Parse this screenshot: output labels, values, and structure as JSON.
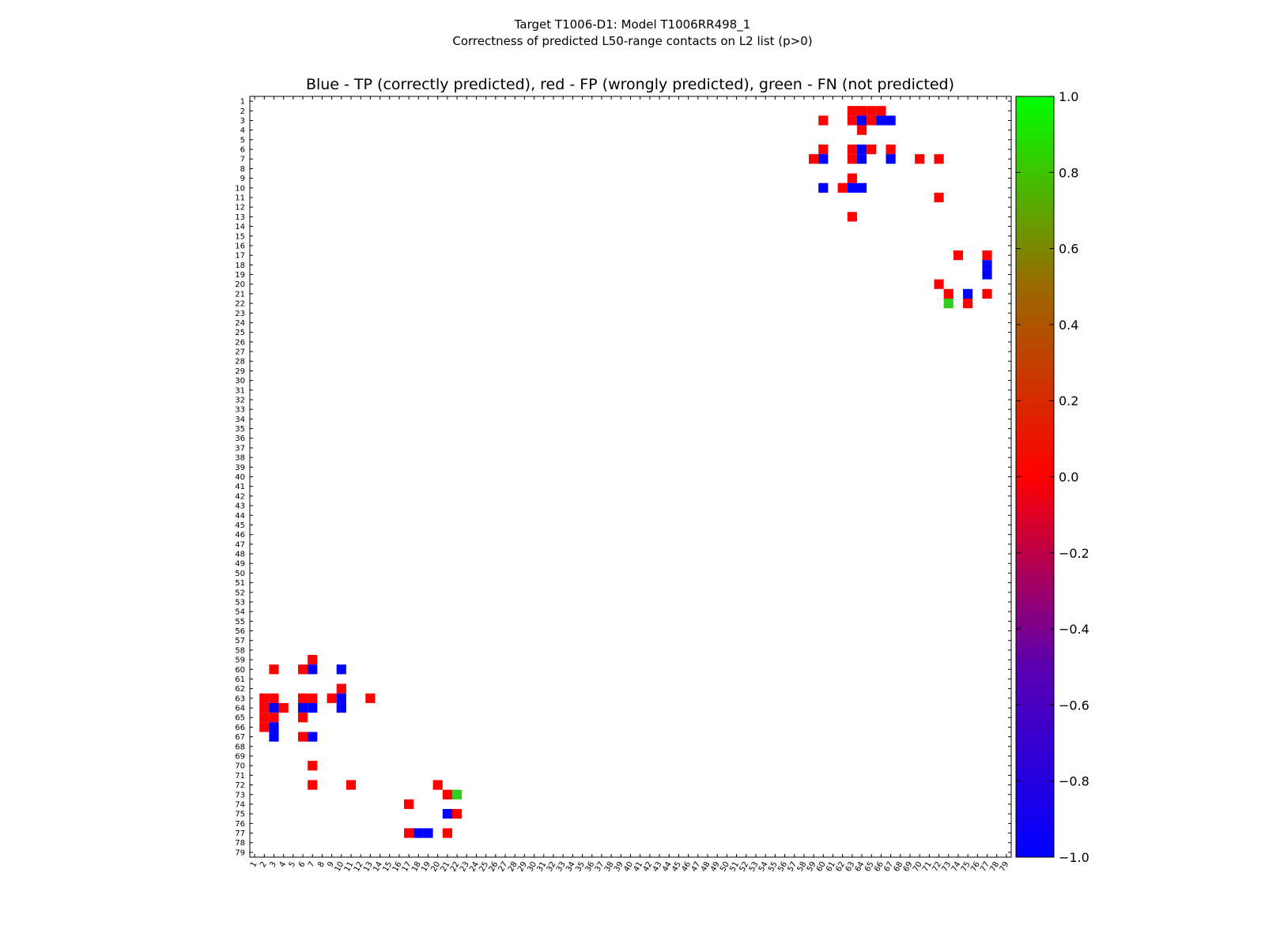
{
  "titles": {
    "line1": "Target T1006-D1: Model T1006RR498_1",
    "line2": "Correctness of predicted L50-range contacts on L2 list (p>0)"
  },
  "chart_data": {
    "type": "heatmap",
    "title": "Blue - TP (correctly predicted), red - FP (wrongly predicted), green - FN (not predicted)",
    "xlabel": "",
    "ylabel": "",
    "x_range": [
      1,
      79
    ],
    "y_range": [
      1,
      79
    ],
    "x_ticks": [
      "1",
      "2",
      "3",
      "4",
      "5",
      "6",
      "7",
      "8",
      "9",
      "10",
      "11",
      "12",
      "13",
      "14",
      "15",
      "16",
      "17",
      "18",
      "19",
      "20",
      "21",
      "22",
      "23",
      "24",
      "25",
      "26",
      "27",
      "28",
      "29",
      "30",
      "31",
      "32",
      "33",
      "34",
      "35",
      "36",
      "37",
      "38",
      "39",
      "40",
      "41",
      "42",
      "43",
      "44",
      "45",
      "46",
      "47",
      "48",
      "49",
      "50",
      "51",
      "52",
      "53",
      "54",
      "55",
      "56",
      "57",
      "58",
      "59",
      "60",
      "61",
      "62",
      "63",
      "64",
      "65",
      "66",
      "67",
      "68",
      "69",
      "70",
      "71",
      "72",
      "73",
      "74",
      "75",
      "76",
      "77",
      "78",
      "79"
    ],
    "y_ticks": [
      "1",
      "2",
      "3",
      "4",
      "5",
      "6",
      "7",
      "8",
      "9",
      "10",
      "11",
      "12",
      "13",
      "14",
      "15",
      "16",
      "17",
      "18",
      "19",
      "20",
      "21",
      "22",
      "23",
      "24",
      "25",
      "26",
      "27",
      "28",
      "29",
      "30",
      "31",
      "32",
      "33",
      "34",
      "35",
      "36",
      "37",
      "38",
      "39",
      "40",
      "41",
      "42",
      "43",
      "44",
      "45",
      "46",
      "47",
      "48",
      "49",
      "50",
      "51",
      "52",
      "53",
      "54",
      "55",
      "56",
      "57",
      "58",
      "59",
      "60",
      "61",
      "62",
      "63",
      "64",
      "65",
      "66",
      "67",
      "68",
      "69",
      "70",
      "71",
      "72",
      "73",
      "74",
      "75",
      "76",
      "77",
      "78",
      "79"
    ],
    "colorbar": {
      "min": -1.0,
      "max": 1.0,
      "ticks": [
        "1.0",
        "0.8",
        "0.6",
        "0.4",
        "0.2",
        "0.0",
        "−0.2",
        "−0.4",
        "−0.6",
        "−0.8",
        "−1.0"
      ],
      "tick_values": [
        1.0,
        0.8,
        0.6,
        0.4,
        0.2,
        0.0,
        -0.2,
        -0.4,
        -0.6,
        -0.8,
        -1.0
      ]
    },
    "colors": {
      "tp": "#0000ff",
      "fp": "#ff0000",
      "fn": "#33cc22"
    },
    "legend": {
      "tp": "TP (correctly predicted)",
      "fp": "FP (wrongly predicted)",
      "fn": "FN (not predicted)"
    },
    "cells": [
      {
        "row": 2,
        "col": 63,
        "kind": "fp"
      },
      {
        "row": 2,
        "col": 64,
        "kind": "fp"
      },
      {
        "row": 2,
        "col": 65,
        "kind": "fp"
      },
      {
        "row": 2,
        "col": 66,
        "kind": "fp"
      },
      {
        "row": 3,
        "col": 60,
        "kind": "fp"
      },
      {
        "row": 3,
        "col": 63,
        "kind": "fp"
      },
      {
        "row": 3,
        "col": 64,
        "kind": "tp"
      },
      {
        "row": 3,
        "col": 65,
        "kind": "fp"
      },
      {
        "row": 3,
        "col": 66,
        "kind": "tp"
      },
      {
        "row": 3,
        "col": 67,
        "kind": "tp"
      },
      {
        "row": 4,
        "col": 64,
        "kind": "fp"
      },
      {
        "row": 6,
        "col": 60,
        "kind": "fp"
      },
      {
        "row": 6,
        "col": 63,
        "kind": "fp"
      },
      {
        "row": 6,
        "col": 64,
        "kind": "tp"
      },
      {
        "row": 6,
        "col": 65,
        "kind": "fp"
      },
      {
        "row": 6,
        "col": 67,
        "kind": "fp"
      },
      {
        "row": 7,
        "col": 59,
        "kind": "fp"
      },
      {
        "row": 7,
        "col": 60,
        "kind": "tp"
      },
      {
        "row": 7,
        "col": 63,
        "kind": "fp"
      },
      {
        "row": 7,
        "col": 64,
        "kind": "tp"
      },
      {
        "row": 7,
        "col": 67,
        "kind": "tp"
      },
      {
        "row": 7,
        "col": 70,
        "kind": "fp"
      },
      {
        "row": 7,
        "col": 72,
        "kind": "fp"
      },
      {
        "row": 9,
        "col": 63,
        "kind": "fp"
      },
      {
        "row": 10,
        "col": 60,
        "kind": "tp"
      },
      {
        "row": 10,
        "col": 62,
        "kind": "fp"
      },
      {
        "row": 10,
        "col": 63,
        "kind": "tp"
      },
      {
        "row": 10,
        "col": 64,
        "kind": "tp"
      },
      {
        "row": 11,
        "col": 72,
        "kind": "fp"
      },
      {
        "row": 13,
        "col": 63,
        "kind": "fp"
      },
      {
        "row": 17,
        "col": 74,
        "kind": "fp"
      },
      {
        "row": 17,
        "col": 77,
        "kind": "fp"
      },
      {
        "row": 18,
        "col": 77,
        "kind": "tp"
      },
      {
        "row": 19,
        "col": 77,
        "kind": "tp"
      },
      {
        "row": 20,
        "col": 72,
        "kind": "fp"
      },
      {
        "row": 21,
        "col": 73,
        "kind": "fp"
      },
      {
        "row": 21,
        "col": 75,
        "kind": "tp"
      },
      {
        "row": 21,
        "col": 77,
        "kind": "fp"
      },
      {
        "row": 22,
        "col": 73,
        "kind": "fn"
      },
      {
        "row": 22,
        "col": 75,
        "kind": "fp"
      },
      {
        "row": 59,
        "col": 7,
        "kind": "fp"
      },
      {
        "row": 60,
        "col": 3,
        "kind": "fp"
      },
      {
        "row": 60,
        "col": 6,
        "kind": "fp"
      },
      {
        "row": 60,
        "col": 7,
        "kind": "tp"
      },
      {
        "row": 60,
        "col": 10,
        "kind": "tp"
      },
      {
        "row": 62,
        "col": 10,
        "kind": "fp"
      },
      {
        "row": 63,
        "col": 2,
        "kind": "fp"
      },
      {
        "row": 63,
        "col": 3,
        "kind": "fp"
      },
      {
        "row": 63,
        "col": 6,
        "kind": "fp"
      },
      {
        "row": 63,
        "col": 7,
        "kind": "fp"
      },
      {
        "row": 63,
        "col": 9,
        "kind": "fp"
      },
      {
        "row": 63,
        "col": 10,
        "kind": "tp"
      },
      {
        "row": 63,
        "col": 13,
        "kind": "fp"
      },
      {
        "row": 64,
        "col": 2,
        "kind": "fp"
      },
      {
        "row": 64,
        "col": 3,
        "kind": "tp"
      },
      {
        "row": 64,
        "col": 4,
        "kind": "fp"
      },
      {
        "row": 64,
        "col": 6,
        "kind": "tp"
      },
      {
        "row": 64,
        "col": 7,
        "kind": "tp"
      },
      {
        "row": 64,
        "col": 10,
        "kind": "tp"
      },
      {
        "row": 65,
        "col": 2,
        "kind": "fp"
      },
      {
        "row": 65,
        "col": 3,
        "kind": "fp"
      },
      {
        "row": 65,
        "col": 6,
        "kind": "fp"
      },
      {
        "row": 66,
        "col": 2,
        "kind": "fp"
      },
      {
        "row": 66,
        "col": 3,
        "kind": "tp"
      },
      {
        "row": 67,
        "col": 3,
        "kind": "tp"
      },
      {
        "row": 67,
        "col": 6,
        "kind": "fp"
      },
      {
        "row": 67,
        "col": 7,
        "kind": "tp"
      },
      {
        "row": 70,
        "col": 7,
        "kind": "fp"
      },
      {
        "row": 72,
        "col": 7,
        "kind": "fp"
      },
      {
        "row": 72,
        "col": 11,
        "kind": "fp"
      },
      {
        "row": 72,
        "col": 20,
        "kind": "fp"
      },
      {
        "row": 73,
        "col": 21,
        "kind": "fp"
      },
      {
        "row": 73,
        "col": 22,
        "kind": "fn"
      },
      {
        "row": 74,
        "col": 17,
        "kind": "fp"
      },
      {
        "row": 75,
        "col": 21,
        "kind": "tp"
      },
      {
        "row": 75,
        "col": 22,
        "kind": "fp"
      },
      {
        "row": 77,
        "col": 17,
        "kind": "fp"
      },
      {
        "row": 77,
        "col": 18,
        "kind": "tp"
      },
      {
        "row": 77,
        "col": 19,
        "kind": "tp"
      },
      {
        "row": 77,
        "col": 21,
        "kind": "fp"
      }
    ]
  }
}
